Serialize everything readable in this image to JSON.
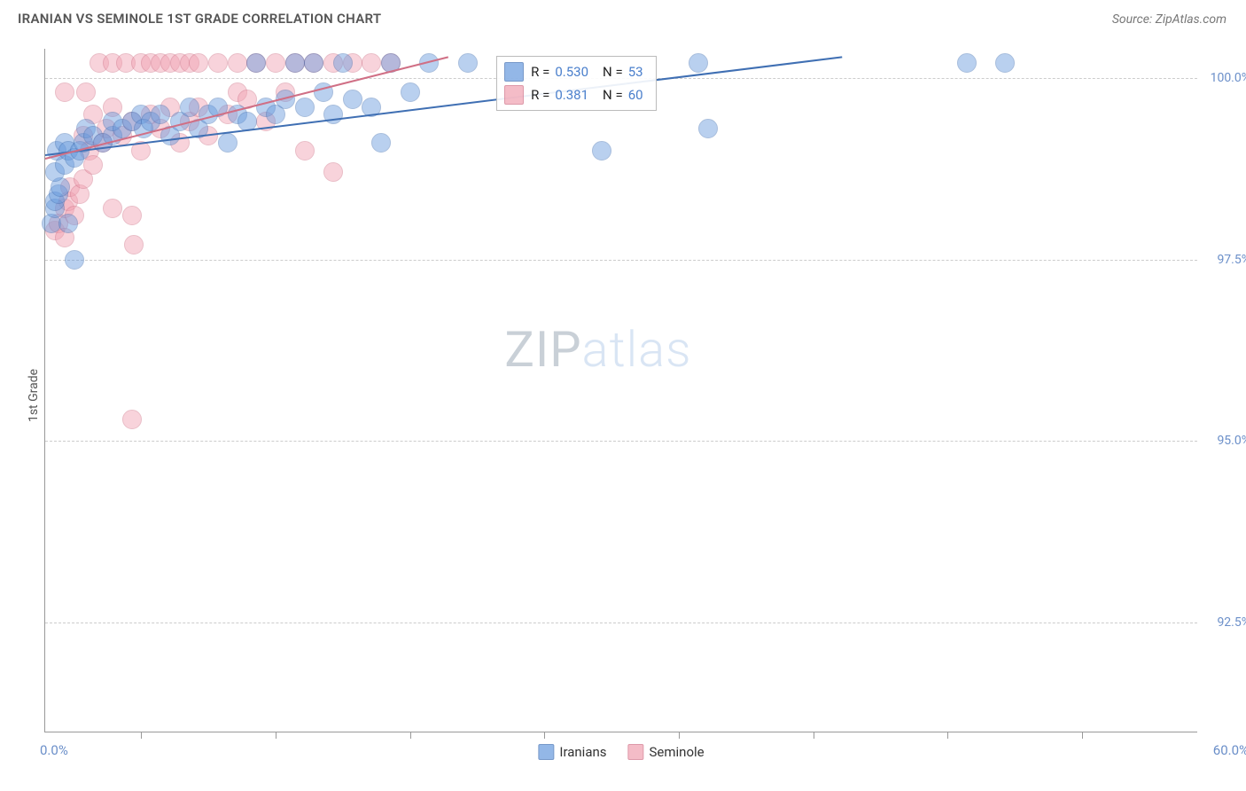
{
  "title": "IRANIAN VS SEMINOLE 1ST GRADE CORRELATION CHART",
  "source": "Source: ZipAtlas.com",
  "ylabel": "1st Grade",
  "watermark_zip": "ZIP",
  "watermark_atlas": "atlas",
  "chart": {
    "type": "scatter",
    "background_color": "#ffffff",
    "grid_color": "#cccccc",
    "axis_color": "#999999",
    "xlim": [
      0,
      60
    ],
    "ylim": [
      91,
      100.4
    ],
    "x_tick_positions": [
      5,
      12,
      19,
      26,
      33,
      40,
      47,
      54
    ],
    "x_label_start": "0.0%",
    "x_label_end": "60.0%",
    "x_label_color": "#6b8fc9",
    "y_ticks": [
      {
        "v": 100.0,
        "label": "100.0%"
      },
      {
        "v": 97.5,
        "label": "97.5%"
      },
      {
        "v": 95.0,
        "label": "95.0%"
      },
      {
        "v": 92.5,
        "label": "92.5%"
      }
    ],
    "y_label_color": "#6b8fc9",
    "marker_radius": 10,
    "marker_opacity": 0.45,
    "marker_stroke_opacity": 0.7,
    "series": [
      {
        "name": "Iranians",
        "color": "#6699dd",
        "stroke": "#3f6fb3",
        "R": "0.530",
        "N": "53",
        "trend": {
          "x1": 0,
          "y1": 98.95,
          "x2": 41.5,
          "y2": 100.3
        },
        "points": [
          [
            0.3,
            98.0
          ],
          [
            0.5,
            98.2
          ],
          [
            0.5,
            98.3
          ],
          [
            0.7,
            98.4
          ],
          [
            0.8,
            98.5
          ],
          [
            0.5,
            98.7
          ],
          [
            1.0,
            98.8
          ],
          [
            0.6,
            99.0
          ],
          [
            1.0,
            99.1
          ],
          [
            1.2,
            99.0
          ],
          [
            1.5,
            98.9
          ],
          [
            1.8,
            99.0
          ],
          [
            2.0,
            99.1
          ],
          [
            2.1,
            99.3
          ],
          [
            2.5,
            99.2
          ],
          [
            3.0,
            99.1
          ],
          [
            3.5,
            99.2
          ],
          [
            3.5,
            99.4
          ],
          [
            4.0,
            99.3
          ],
          [
            4.5,
            99.4
          ],
          [
            5.0,
            99.5
          ],
          [
            5.1,
            99.3
          ],
          [
            5.5,
            99.4
          ],
          [
            6.0,
            99.5
          ],
          [
            6.5,
            99.2
          ],
          [
            7.0,
            99.4
          ],
          [
            7.5,
            99.6
          ],
          [
            8.0,
            99.3
          ],
          [
            8.5,
            99.5
          ],
          [
            9.0,
            99.6
          ],
          [
            9.5,
            99.1
          ],
          [
            10.0,
            99.5
          ],
          [
            10.5,
            99.4
          ],
          [
            11.0,
            100.2
          ],
          [
            11.5,
            99.6
          ],
          [
            12.0,
            99.5
          ],
          [
            12.5,
            99.7
          ],
          [
            13.0,
            100.2
          ],
          [
            13.5,
            99.6
          ],
          [
            14.0,
            100.2
          ],
          [
            14.5,
            99.8
          ],
          [
            15.0,
            99.5
          ],
          [
            15.5,
            100.2
          ],
          [
            16.0,
            99.7
          ],
          [
            17.0,
            99.6
          ],
          [
            17.5,
            99.1
          ],
          [
            18.0,
            100.2
          ],
          [
            19.0,
            99.8
          ],
          [
            20.0,
            100.2
          ],
          [
            22.0,
            100.2
          ],
          [
            29.0,
            99.0
          ],
          [
            34.0,
            100.2
          ],
          [
            34.5,
            99.3
          ],
          [
            48.0,
            100.2
          ],
          [
            50.0,
            100.2
          ],
          [
            1.5,
            97.5
          ],
          [
            1.2,
            98.0
          ]
        ]
      },
      {
        "name": "Seminole",
        "color": "#f0a0b0",
        "stroke": "#d06f85",
        "R": "0.381",
        "N": "60",
        "trend": {
          "x1": 0,
          "y1": 98.9,
          "x2": 21.0,
          "y2": 100.3
        },
        "points": [
          [
            0.5,
            97.9
          ],
          [
            0.7,
            98.0
          ],
          [
            1.0,
            97.8
          ],
          [
            1.0,
            98.2
          ],
          [
            1.0,
            99.8
          ],
          [
            1.2,
            98.3
          ],
          [
            1.3,
            98.5
          ],
          [
            1.5,
            98.1
          ],
          [
            1.8,
            98.4
          ],
          [
            2.0,
            98.6
          ],
          [
            2.0,
            99.2
          ],
          [
            2.1,
            99.8
          ],
          [
            2.3,
            99.0
          ],
          [
            2.5,
            98.8
          ],
          [
            2.5,
            99.5
          ],
          [
            2.8,
            100.2
          ],
          [
            3.0,
            99.1
          ],
          [
            3.2,
            99.3
          ],
          [
            3.5,
            98.2
          ],
          [
            3.5,
            99.6
          ],
          [
            3.5,
            100.2
          ],
          [
            4.0,
            99.2
          ],
          [
            4.2,
            100.2
          ],
          [
            4.5,
            99.4
          ],
          [
            4.5,
            98.1
          ],
          [
            4.6,
            97.7
          ],
          [
            5.0,
            100.2
          ],
          [
            5.0,
            99.0
          ],
          [
            5.5,
            99.5
          ],
          [
            5.5,
            100.2
          ],
          [
            6.0,
            99.3
          ],
          [
            6.0,
            100.2
          ],
          [
            6.5,
            99.6
          ],
          [
            6.5,
            100.2
          ],
          [
            7.0,
            99.1
          ],
          [
            7.0,
            100.2
          ],
          [
            7.5,
            99.4
          ],
          [
            7.5,
            100.2
          ],
          [
            8.0,
            99.6
          ],
          [
            8.0,
            100.2
          ],
          [
            8.5,
            99.2
          ],
          [
            9.0,
            100.2
          ],
          [
            9.5,
            99.5
          ],
          [
            10.0,
            99.8
          ],
          [
            10.0,
            100.2
          ],
          [
            10.5,
            99.7
          ],
          [
            11.0,
            100.2
          ],
          [
            11.5,
            99.4
          ],
          [
            12.0,
            100.2
          ],
          [
            12.5,
            99.8
          ],
          [
            13.0,
            100.2
          ],
          [
            13.5,
            99.0
          ],
          [
            14.0,
            100.2
          ],
          [
            15.0,
            98.7
          ],
          [
            15.0,
            100.2
          ],
          [
            16.0,
            100.2
          ],
          [
            17.0,
            100.2
          ],
          [
            18.0,
            100.2
          ],
          [
            4.5,
            95.3
          ]
        ]
      }
    ]
  },
  "legend_box": {
    "stat_text_color": "#222",
    "stat_value_color": "#4a7fcc",
    "rows": [
      {
        "series": 0,
        "R_label": "R =",
        "N_label": "N ="
      },
      {
        "series": 1,
        "R_label": "R =",
        "N_label": "N ="
      }
    ]
  },
  "bottom_legend": {
    "items": [
      {
        "series": 0
      },
      {
        "series": 1
      }
    ]
  }
}
